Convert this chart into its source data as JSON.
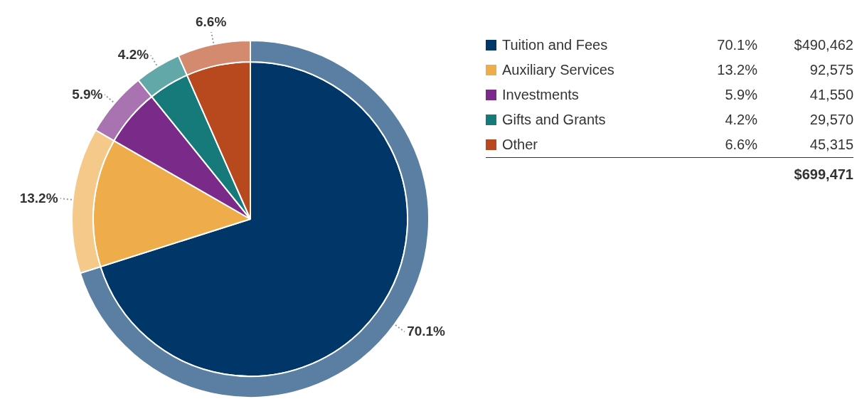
{
  "chart_data": {
    "type": "pie",
    "categories": [
      "Tuition and Fees",
      "Auxiliary Services",
      "Investments",
      "Gifts and Grants",
      "Other"
    ],
    "series": [
      {
        "values": [
          70.1,
          13.2,
          5.9,
          4.2,
          6.6
        ],
        "colors": [
          "#5a7fa3",
          "#f4c98a",
          "#a873b0",
          "#63a8a8",
          "#d38a6e"
        ]
      },
      {
        "values": [
          70.1,
          13.2,
          5.9,
          4.2,
          6.6
        ],
        "colors": [
          "#003768",
          "#efac4a",
          "#7a2a88",
          "#16797a",
          "#b8491e"
        ]
      }
    ],
    "value_labels": [
      "70.1%",
      "13.2%",
      "5.9%",
      "4.2%",
      "6.6%"
    ],
    "annotations": [
      "$490,462",
      "92,575",
      "41,550",
      "29,570",
      "45,315"
    ],
    "totals": [
      "$699,471"
    ],
    "legend": "right"
  }
}
